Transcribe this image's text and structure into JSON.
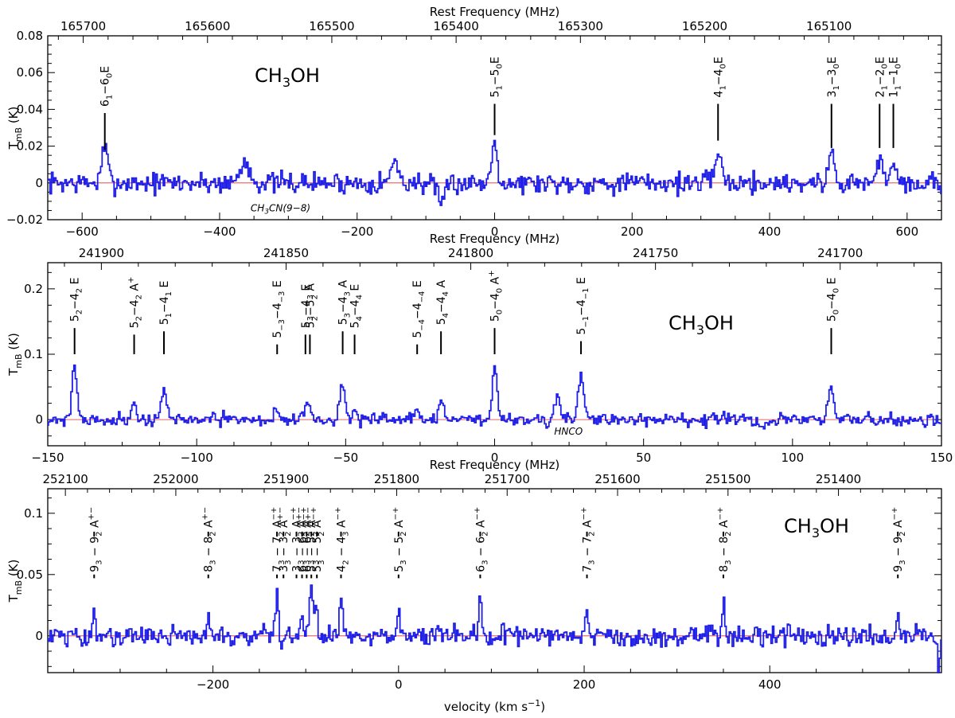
{
  "chart_data": [
    {
      "type": "line",
      "molecule": "CH3OH",
      "top_axis_label": "Rest Frequency (MHz)",
      "ylabel": "T_mB (K)",
      "xlim": [
        -650,
        650
      ],
      "ylim": [
        -0.02,
        0.08
      ],
      "x_ticks": [
        -600,
        -400,
        -200,
        0,
        200,
        400,
        600
      ],
      "y_ticks": [
        -0.02,
        0,
        0.02,
        0.04,
        0.06,
        0.08
      ],
      "y_tick_labels": [
        "−0.02",
        "0",
        "0.02",
        "0.04",
        "0.06",
        "0.08"
      ],
      "top_ticks": [
        165700,
        165600,
        165500,
        165400,
        165300,
        165200,
        165100
      ],
      "top_ref": {
        "freq": 165400,
        "vel": -56
      },
      "lines": [
        {
          "label": "6_1−6_0E",
          "x": -567,
          "mark": [
            0.018,
            0.038
          ]
        },
        {
          "label": "5_1−5_0E",
          "x": 0,
          "mark": [
            0.026,
            0.043
          ]
        },
        {
          "label": "4_1−4_0E",
          "x": 325,
          "mark": [
            0.023,
            0.043
          ]
        },
        {
          "label": "3_1−3_0E",
          "x": 490,
          "mark": [
            0.019,
            0.043
          ]
        },
        {
          "label": "2_1−2_0E",
          "x": 560,
          "mark": [
            0.019,
            0.043
          ]
        },
        {
          "label": "1_1−1_0E",
          "x": 580,
          "mark": [
            0.019,
            0.043
          ]
        }
      ],
      "annotations": [
        {
          "text": "CH3CN(9−8)",
          "x": -355,
          "y": -0.0155
        }
      ],
      "peaks": [
        {
          "x": -567,
          "h": 0.019,
          "w": 6
        },
        {
          "x": 0,
          "h": 0.023,
          "w": 6
        },
        {
          "x": 325,
          "h": 0.019,
          "w": 6
        },
        {
          "x": 490,
          "h": 0.016,
          "w": 6
        },
        {
          "x": 560,
          "h": 0.012,
          "w": 6
        },
        {
          "x": 580,
          "h": 0.014,
          "w": 6
        },
        {
          "x": -363,
          "h": 0.011,
          "w": 10
        },
        {
          "x": -145,
          "h": 0.011,
          "w": 8
        },
        {
          "x": -78,
          "h": -0.015,
          "w": 6
        }
      ],
      "noise": 0.0045,
      "seed": 7
    },
    {
      "type": "line",
      "molecule": "CH3OH",
      "top_axis_label": "Rest Frequency (MHz)",
      "ylabel": "T_mB (K)",
      "xlim": [
        -150,
        150
      ],
      "ylim": [
        -0.04,
        0.24
      ],
      "x_ticks": [
        -150,
        -100,
        -50,
        0,
        50,
        100,
        150
      ],
      "y_ticks": [
        0,
        0.1,
        0.2
      ],
      "y_tick_labels": [
        "0",
        "0.1",
        "0.2"
      ],
      "top_ticks": [
        241900,
        241850,
        241800,
        241750,
        241700
      ],
      "top_ref": {
        "freq": 241800,
        "vel": -8
      },
      "lines": [
        {
          "label": "5_2−4_2 E",
          "x": -141,
          "mark": [
            0.1,
            0.14
          ]
        },
        {
          "label": "5_2−4_2 A^+",
          "x": -121,
          "mark": [
            0.1,
            0.13
          ]
        },
        {
          "label": "5_1−4_1 E",
          "x": -111,
          "mark": [
            0.1,
            0.135
          ]
        },
        {
          "label": "5_−3−4_−3 E",
          "x": -73,
          "mark": [
            0.1,
            0.115
          ]
        },
        {
          "label": "5_3−4_3 E",
          "x": -63.5,
          "mark": [
            0.1,
            0.13
          ]
        },
        {
          "label": "5_2−5_2 A",
          "x": -62,
          "mark": [
            0.1,
            0.13
          ]
        },
        {
          "label": "5_3−4_3 A",
          "x": -51,
          "mark": [
            0.1,
            0.135
          ]
        },
        {
          "label": "5_4−4_4 E",
          "x": -47,
          "mark": [
            0.1,
            0.13
          ]
        },
        {
          "label": "5_−4−4_−4 E",
          "x": -26,
          "mark": [
            0.1,
            0.115
          ]
        },
        {
          "label": "5_4−4_4 A",
          "x": -18,
          "mark": [
            0.1,
            0.135
          ]
        },
        {
          "label": "5_0−4_0 A^+",
          "x": 0,
          "mark": [
            0.1,
            0.14
          ]
        },
        {
          "label": "5_−1−4_−1 E",
          "x": 29,
          "mark": [
            0.1,
            0.12
          ]
        },
        {
          "label": "5_0−4_0 E",
          "x": 113,
          "mark": [
            0.1,
            0.14
          ]
        }
      ],
      "annotations": [
        {
          "text": "HNCO",
          "x": 20,
          "y": -0.023
        }
      ],
      "peaks": [
        {
          "x": -141,
          "h": 0.082,
          "w": 1.2
        },
        {
          "x": -121,
          "h": 0.022,
          "w": 1.3
        },
        {
          "x": -111,
          "h": 0.048,
          "w": 1.2
        },
        {
          "x": -73,
          "h": 0.012,
          "w": 1.2
        },
        {
          "x": -63,
          "h": 0.03,
          "w": 1.4
        },
        {
          "x": -51,
          "h": 0.05,
          "w": 1.2
        },
        {
          "x": -47,
          "h": 0.012,
          "w": 1.2
        },
        {
          "x": -26,
          "h": 0.01,
          "w": 1.2
        },
        {
          "x": -18,
          "h": 0.028,
          "w": 1.2
        },
        {
          "x": 0,
          "h": 0.078,
          "w": 1.2
        },
        {
          "x": 21,
          "h": 0.038,
          "w": 1.3
        },
        {
          "x": 29,
          "h": 0.068,
          "w": 1.2
        },
        {
          "x": 113,
          "h": 0.052,
          "w": 1.2
        },
        {
          "x": 90,
          "h": -0.015,
          "w": 2
        }
      ],
      "noise": 0.0075,
      "seed": 21
    },
    {
      "type": "line",
      "molecule": "CH3OH",
      "top_axis_label": "Rest Frequency (MHz)",
      "xlabel": "velocity (km s^−1)",
      "ylabel": "T_mB (K)",
      "xlim": [
        -378,
        585
      ],
      "ylim": [
        -0.03,
        0.12
      ],
      "x_ticks": [
        -200,
        0,
        200,
        400
      ],
      "y_ticks": [
        0,
        0.05,
        0.1
      ],
      "y_tick_labels": [
        "0",
        "0.05",
        "0.1"
      ],
      "top_ticks": [
        252100,
        252000,
        251900,
        251800,
        251700,
        251600,
        251500,
        251400
      ],
      "top_ref": {
        "freq": 251800,
        "vel": -2
      },
      "lines": [
        {
          "label": "9_3 − 9_2 A^+−",
          "x": -328
        },
        {
          "label": "8_3 − 8_2 A^+−",
          "x": -205
        },
        {
          "label": "7_3 − 7_2 A^−+",
          "x": -131
        },
        {
          "label": "3_3 − 3_2 A^+−",
          "x": -124
        },
        {
          "label": "3_3 − 3_2 A^−+",
          "x": -110
        },
        {
          "label": "6_3 − 6_2 A^+−",
          "x": -104
        },
        {
          "label": "6_3 − 6_2 A^−+",
          "x": -99
        },
        {
          "label": "5_3 − 5_2 A^+−",
          "x": -94
        },
        {
          "label": "5_3 − 5_2 A^−+",
          "x": -88
        },
        {
          "label": "4_2 − 4_3 A^−+",
          "x": -62
        },
        {
          "label": "5_3 − 5_2 A^−+",
          "x": 0
        },
        {
          "label": "6_3 − 6_2 A^−+",
          "x": 88
        },
        {
          "label": "7_3 − 7_2 A^−+",
          "x": 203
        },
        {
          "label": "8_3 − 8_2 A^−+",
          "x": 350
        },
        {
          "label": "9_3 − 9_2 A^−+",
          "x": 538
        }
      ],
      "annotations": [],
      "peaks": [
        {
          "x": -328,
          "h": 0.02,
          "w": 2
        },
        {
          "x": -205,
          "h": 0.022,
          "w": 2
        },
        {
          "x": -131,
          "h": 0.032,
          "w": 2
        },
        {
          "x": -104,
          "h": 0.025,
          "w": 2
        },
        {
          "x": -94,
          "h": 0.045,
          "w": 2.5
        },
        {
          "x": -89,
          "h": 0.03,
          "w": 2
        },
        {
          "x": -62,
          "h": 0.03,
          "w": 2
        },
        {
          "x": 0,
          "h": 0.024,
          "w": 2
        },
        {
          "x": 88,
          "h": 0.03,
          "w": 2
        },
        {
          "x": 203,
          "h": 0.026,
          "w": 2
        },
        {
          "x": 350,
          "h": 0.024,
          "w": 2
        },
        {
          "x": 538,
          "h": 0.02,
          "w": 2
        },
        {
          "x": 582,
          "h": -0.025,
          "w": 2
        }
      ],
      "noise": 0.0065,
      "seed": 45
    }
  ]
}
